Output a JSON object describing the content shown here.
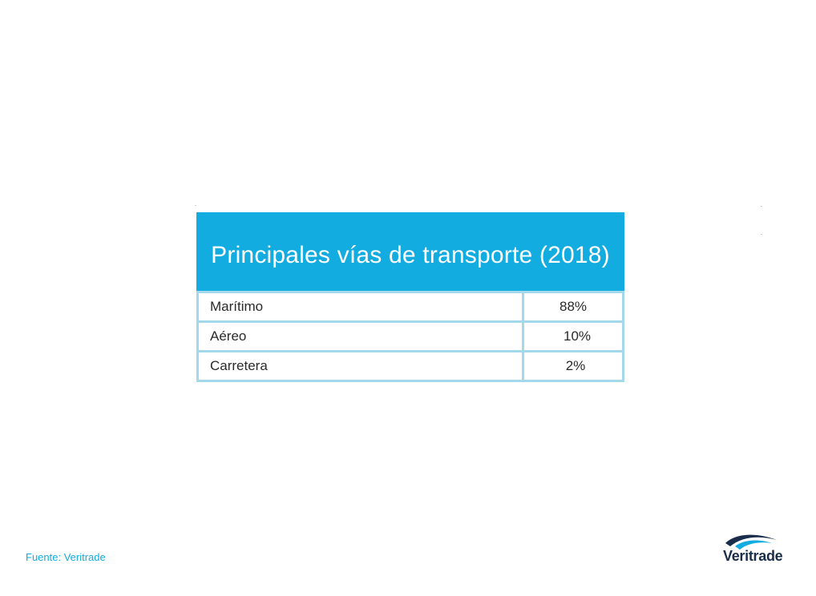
{
  "table": {
    "title": "Principales vías de transporte (2018)",
    "rows": [
      {
        "label": "Marítimo",
        "value": "88%"
      },
      {
        "label": "Aéreo",
        "value": "10%"
      },
      {
        "label": "Carretera",
        "value": "2%"
      }
    ]
  },
  "footer": {
    "source": "Fuente: Veritrade"
  },
  "logo": {
    "text": "Veritrade",
    "icon": "veritrade-swoosh-icon"
  },
  "colors": {
    "header_bg": "#12ace0",
    "border": "#a4d9ec",
    "source_text": "#12ace0",
    "logo_text": "#1a2e4c"
  }
}
